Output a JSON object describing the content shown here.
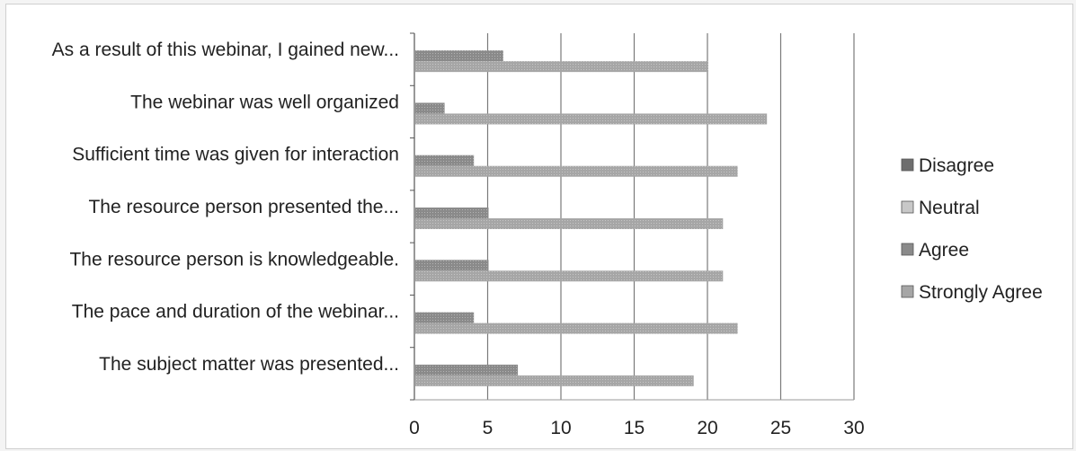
{
  "chart_data": {
    "type": "bar",
    "orientation": "horizontal",
    "categories": [
      "As a result of this webinar, I gained new...",
      "The webinar was well organized",
      "Sufficient time was given for interaction",
      "The resource person presented the...",
      "The resource person is knowledgeable.",
      "The pace and duration of the webinar...",
      "The subject matter was presented..."
    ],
    "series": [
      {
        "name": "Disagree",
        "values": [
          0,
          0,
          0,
          0,
          0,
          0,
          0
        ],
        "color": "#6e6e6e"
      },
      {
        "name": "Neutral",
        "values": [
          0,
          0,
          0,
          0,
          0,
          0,
          0
        ],
        "color": "#c8c8c8"
      },
      {
        "name": "Agree",
        "values": [
          6,
          2,
          4,
          5,
          5,
          4,
          7
        ],
        "color": "#8a8a8a"
      },
      {
        "name": "Strongly Agree",
        "values": [
          20,
          24,
          22,
          21,
          21,
          22,
          19
        ],
        "color": "#a6a6a6"
      }
    ],
    "xlim": [
      0,
      30
    ],
    "xticks": [
      0,
      5,
      10,
      15,
      20,
      25,
      30
    ],
    "grid": true,
    "legend": "right"
  }
}
